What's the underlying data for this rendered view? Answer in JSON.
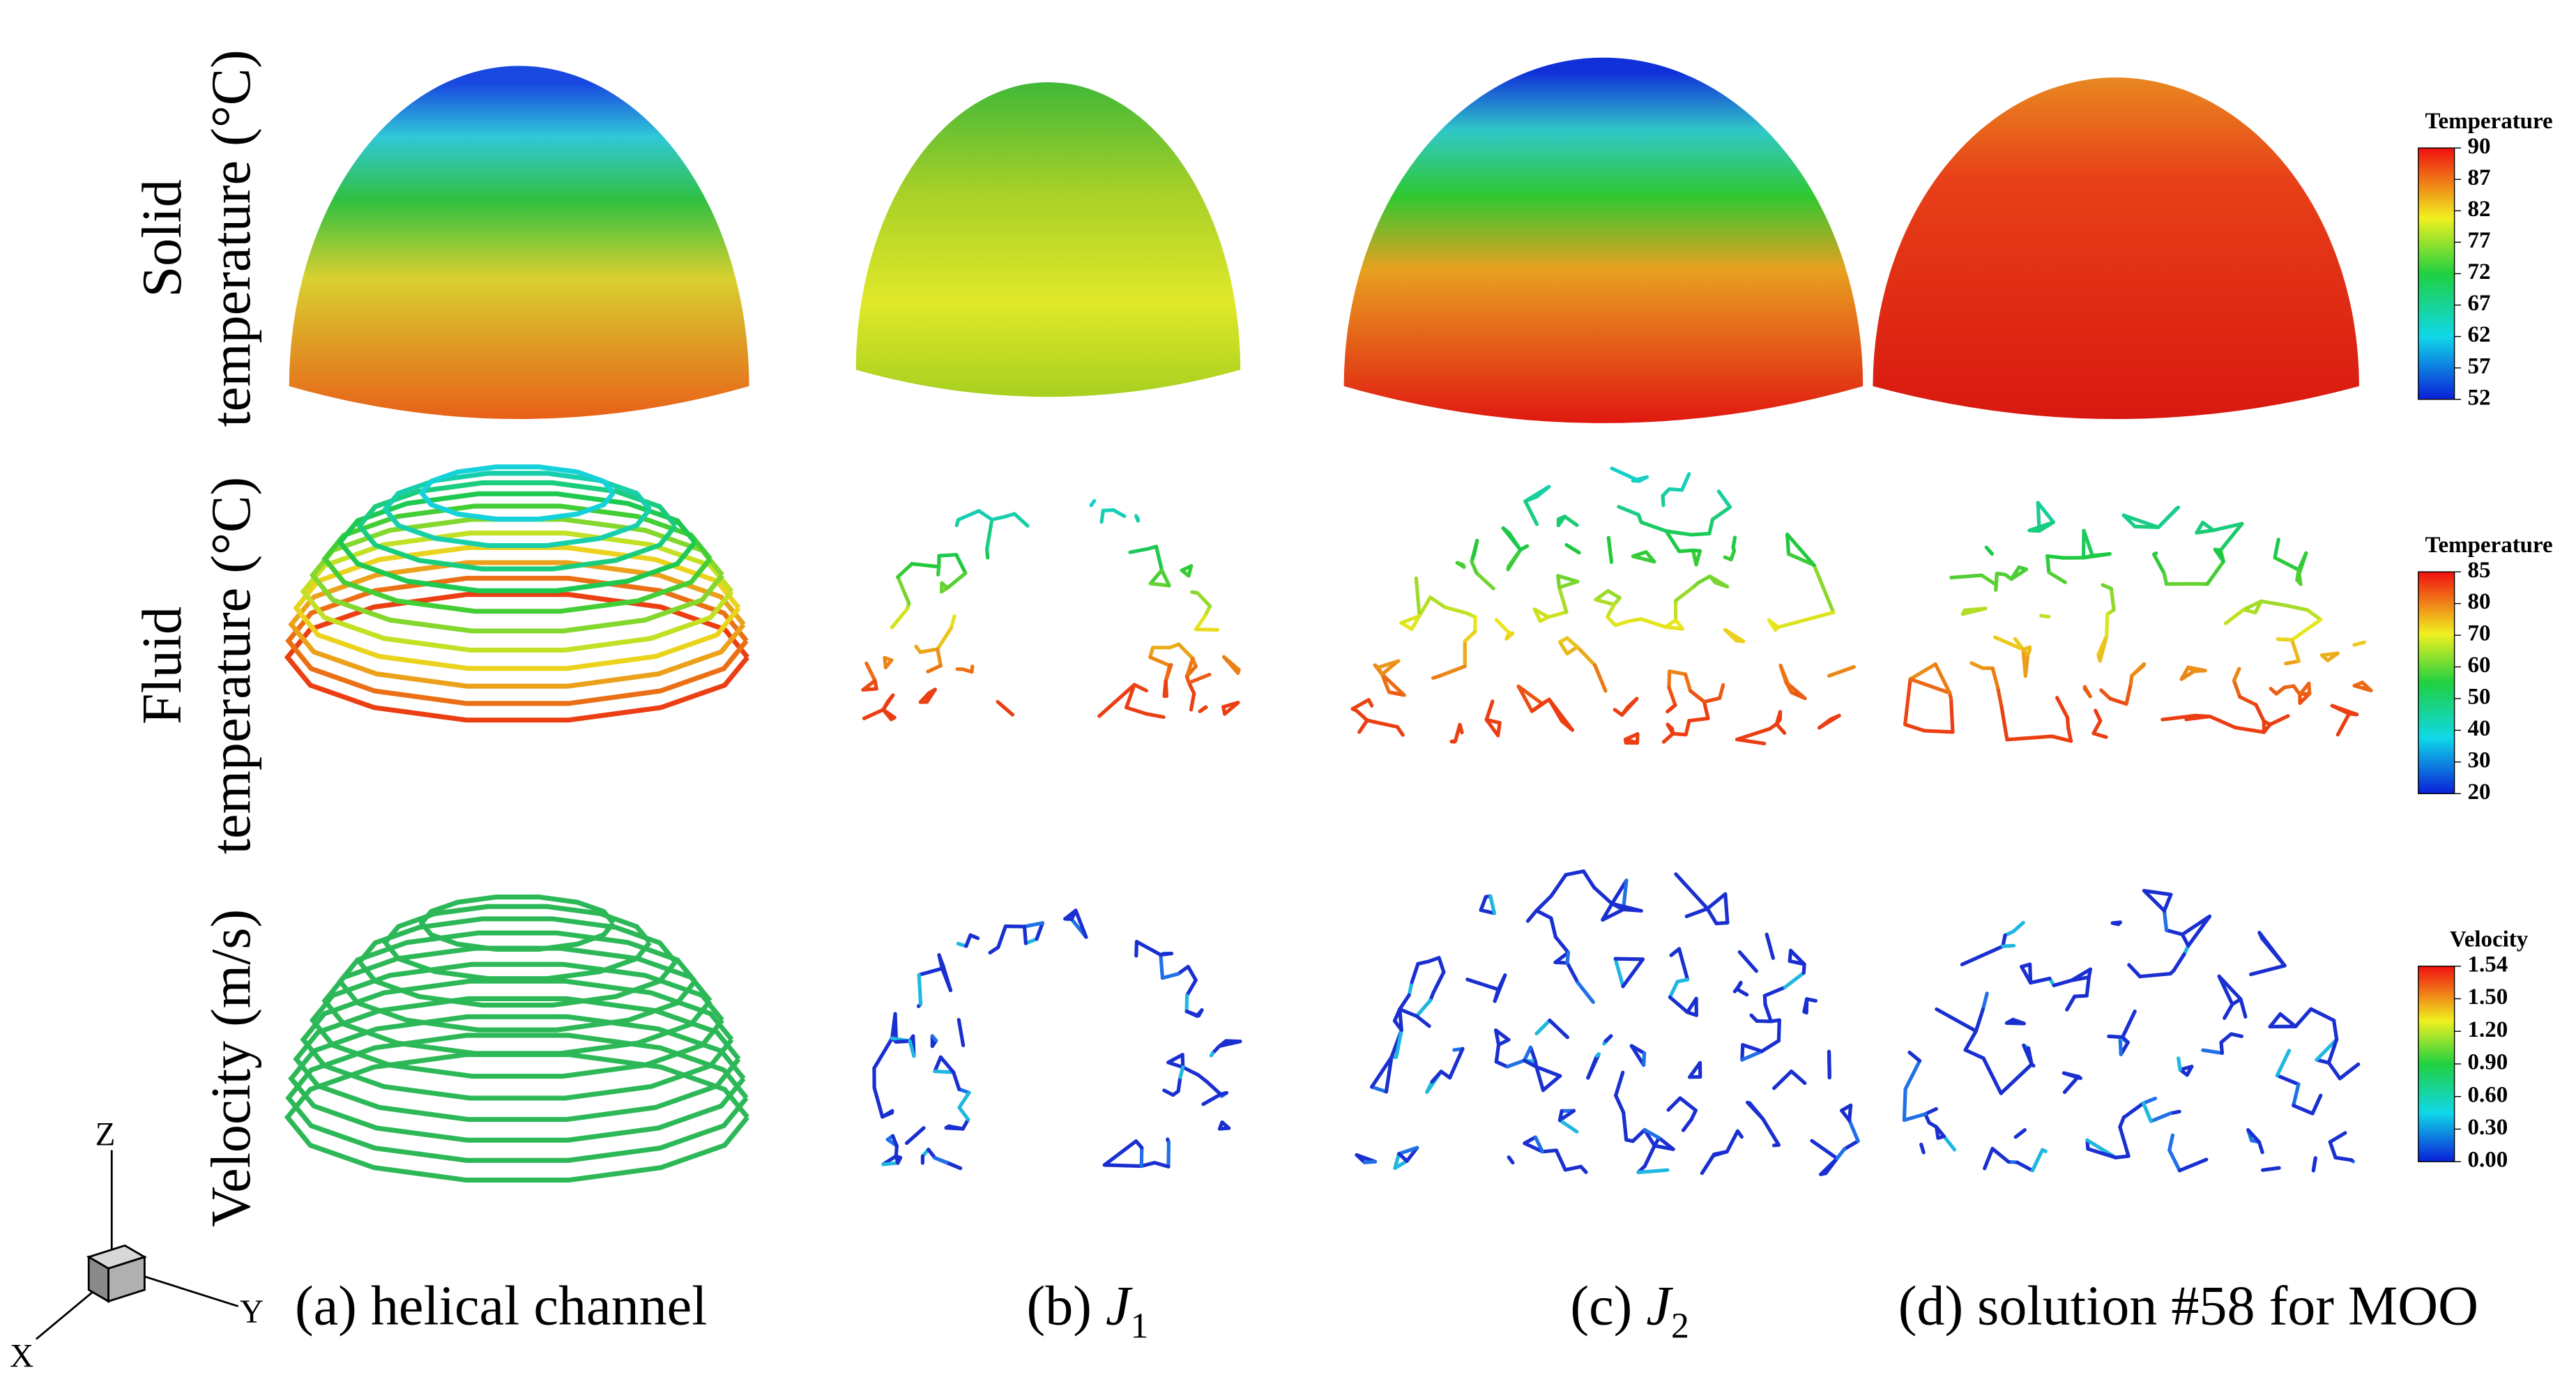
{
  "row_labels": [
    [
      "Solid",
      "temperature (°C)"
    ],
    [
      "Fluid",
      "temperature (°C)"
    ],
    [
      "Velocity (m/s)"
    ]
  ],
  "captions": [
    {
      "prefix": "(a) helical channel"
    },
    {
      "prefix": "(b)",
      "symbol": "J",
      "subscript": "1"
    },
    {
      "prefix": "(c)",
      "symbol": "J",
      "subscript": "2"
    },
    {
      "prefix": "(d) solution #58 for MOO"
    }
  ],
  "colorbars": [
    {
      "title": "Temperature",
      "ticks": [
        "90",
        "87",
        "82",
        "77",
        "72",
        "67",
        "62",
        "57",
        "52"
      ]
    },
    {
      "title": "Temperature",
      "ticks": [
        "85",
        "80",
        "70",
        "60",
        "50",
        "40",
        "30",
        "20"
      ]
    },
    {
      "title": "Velocity",
      "ticks": [
        "1.54",
        "1.50",
        "1.20",
        "0.90",
        "0.60",
        "0.30",
        "0.00"
      ]
    }
  ],
  "axes": {
    "z": "Z",
    "y": "Y",
    "x": "X"
  }
}
